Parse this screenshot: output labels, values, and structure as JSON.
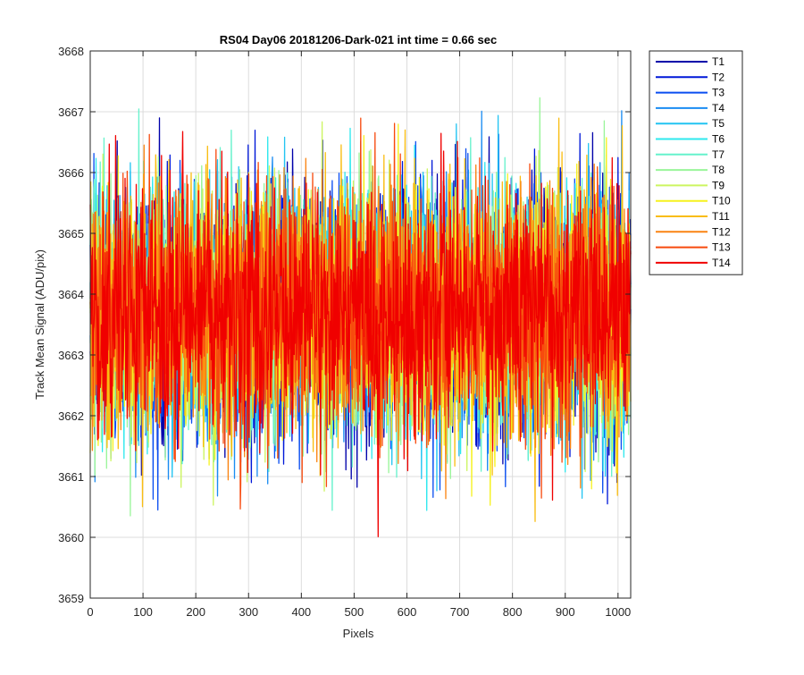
{
  "chart_data": {
    "type": "line",
    "title": "RS04 Day06 20181206-Dark-021 int time = 0.66 sec",
    "xlabel": "Pixels",
    "ylabel": "Track Mean Signal (ADU/pix)",
    "xlim": [
      0,
      1024
    ],
    "ylim": [
      3659,
      3668
    ],
    "xticks": [
      0,
      100,
      200,
      300,
      400,
      500,
      600,
      700,
      800,
      900,
      1000
    ],
    "yticks": [
      3659,
      3660,
      3661,
      3662,
      3663,
      3664,
      3665,
      3666,
      3667,
      3668
    ],
    "grid": true,
    "legend_position": "outside-top-right",
    "points_per_series": 1024,
    "series_spread": {
      "center": 3663.75,
      "typical_low": 3662.2,
      "typical_high": 3665.4,
      "extreme_low": 3659.85,
      "extreme_high": 3667.3
    },
    "series": [
      {
        "name": "T1",
        "color": "#0000aa"
      },
      {
        "name": "T2",
        "color": "#0018d8"
      },
      {
        "name": "T3",
        "color": "#0a4ef0"
      },
      {
        "name": "T4",
        "color": "#1a8cf2"
      },
      {
        "name": "T5",
        "color": "#22c4f2"
      },
      {
        "name": "T6",
        "color": "#2ee8ee"
      },
      {
        "name": "T7",
        "color": "#66f2cc"
      },
      {
        "name": "T8",
        "color": "#9af59a"
      },
      {
        "name": "T9",
        "color": "#ccf560"
      },
      {
        "name": "T10",
        "color": "#f6f21e"
      },
      {
        "name": "T11",
        "color": "#f9bd12"
      },
      {
        "name": "T12",
        "color": "#fa8412"
      },
      {
        "name": "T13",
        "color": "#f74a0e"
      },
      {
        "name": "T14",
        "color": "#f00000"
      }
    ]
  }
}
